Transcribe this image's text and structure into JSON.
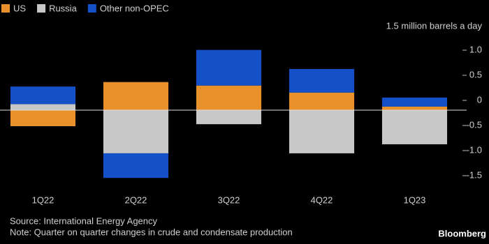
{
  "chart_data": {
    "type": "bar",
    "stacked": true,
    "unit_label": "1.5 million barrels a day",
    "categories": [
      "1Q22",
      "2Q22",
      "3Q22",
      "4Q22",
      "1Q23"
    ],
    "series": [
      {
        "name": "US",
        "color": "#e8912a",
        "values": [
          -0.32,
          0.56,
          0.49,
          0.35,
          0.07
        ]
      },
      {
        "name": "Russia",
        "color": "#c8c8c8",
        "values": [
          0.12,
          -0.86,
          -0.28,
          -0.86,
          -0.68
        ]
      },
      {
        "name": "Other non-OPEC",
        "color": "#1450c8",
        "values": [
          0.35,
          -0.49,
          0.71,
          0.47,
          0.18
        ]
      }
    ],
    "ylim": [
      -1.6,
      1.4
    ],
    "yticks": [
      {
        "value": 1,
        "label": "1.0"
      },
      0.5,
      0,
      -0.5,
      {
        "value": -1,
        "label": "-1.0"
      },
      -1.5
    ],
    "source": "Source: International Energy Agency",
    "note": "Note: Quarter on quarter changes in crude and condensate production",
    "brand": "Bloomberg"
  }
}
